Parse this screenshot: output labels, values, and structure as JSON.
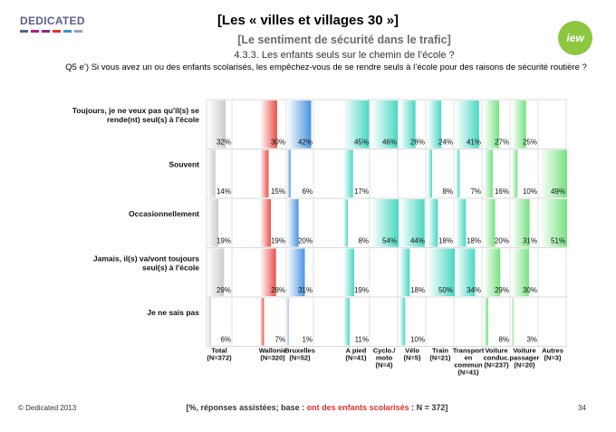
{
  "header": {
    "brand": "DEDICATED",
    "brand_colors": [
      "#5b5f8a",
      "#c0177a",
      "#8a2a7a",
      "#e2322a",
      "#3b8fd6",
      "#9aa0b8"
    ],
    "title": "[Les « villes et villages 30 »]",
    "subtitle": "[Le sentiment de sécurité dans le trafic]",
    "section": "4.3.3. Les enfants seuls sur le chemin de l’école ?",
    "question": "Q5 e’) Si vous avez un ou des enfants scolarisés, les empêchez-vous de se rendre seuls à l’école pour des raisons de sécurité routière ?",
    "badge": "iew",
    "badge_color": "#8dc63f"
  },
  "chart_data": {
    "type": "bar",
    "orientation": "small-multiples-vertical",
    "title": "Q5 e’) Si vous avez un ou des enfants scolarisés, les empêchez-vous de se rendre seuls à l’école pour des raisons de sécurité routière ?",
    "unit": "%",
    "rows": [
      "Toujours, je ne veux pas qu'il(s) se rende(nt) seul(s) à l'école",
      "Souvent",
      "Occasionnellement",
      "Jamais, il(s) va/vont toujours seul(s) à l'école",
      "Je ne sais pas"
    ],
    "columns": [
      {
        "label": "Total",
        "n": "(N=372)",
        "color": "#c8c8c8",
        "group": 0,
        "values": [
          32,
          14,
          19,
          29,
          6
        ]
      },
      {
        "label": "Wallonie",
        "n": "(N=320)",
        "color": "#e8473f",
        "group": 1,
        "values": [
          30,
          15,
          19,
          28,
          7
        ]
      },
      {
        "label": "Bruxelles",
        "n": "(N=52)",
        "color": "#3f8fe0",
        "group": 1,
        "values": [
          42,
          6,
          20,
          31,
          1
        ]
      },
      {
        "label": "A pied",
        "n": "(N=41)",
        "color": "#3fd6c0",
        "group": 2,
        "values": [
          45,
          17,
          8,
          19,
          11
        ]
      },
      {
        "label": "Cyclo./ moto",
        "n": "(N=4)",
        "color": "#3fd6c0",
        "group": 2,
        "values": [
          46,
          0,
          54,
          0,
          0
        ]
      },
      {
        "label": "Vélo",
        "n": "(N=5)",
        "color": "#3fd6c0",
        "group": 2,
        "values": [
          28,
          0,
          44,
          18,
          10
        ]
      },
      {
        "label": "Train",
        "n": "(N=21)",
        "color": "#3fd6c0",
        "group": 2,
        "values": [
          24,
          8,
          18,
          50,
          0
        ]
      },
      {
        "label": "Transport en commun",
        "n": "(N=41)",
        "color": "#3fd6c0",
        "group": 2,
        "values": [
          41,
          7,
          18,
          34,
          0
        ]
      },
      {
        "label": "Voiture conduc.",
        "n": "(N=237)",
        "color": "#6fe07a",
        "group": 2,
        "values": [
          27,
          16,
          20,
          29,
          8
        ]
      },
      {
        "label": "Voiture passager",
        "n": "(N=20)",
        "color": "#6fe07a",
        "group": 2,
        "values": [
          25,
          10,
          31,
          30,
          3
        ]
      },
      {
        "label": "Autres",
        "n": "(N=3)",
        "color": "#6fe07a",
        "group": 2,
        "values": [
          0,
          49,
          51,
          0,
          0
        ]
      }
    ],
    "ylim": [
      0,
      100
    ]
  },
  "footer": {
    "left": "© Dedicated 2013",
    "center_prefix": "[%, réponses assistées; base : ",
    "center_highlight": "ont des enfants scolarisés",
    "center_suffix": " : N = 372]",
    "page": "34"
  }
}
